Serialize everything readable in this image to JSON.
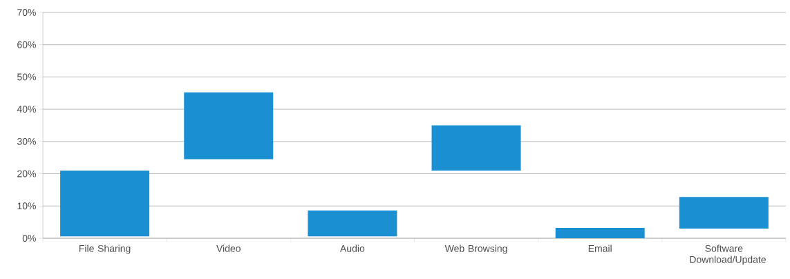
{
  "chart_data": {
    "type": "bar",
    "categories": [
      "File Sharing",
      "Video",
      "Audio",
      "Web Browsing",
      "Email",
      "Software Download/Update"
    ],
    "base": [
      0.6,
      24.5,
      0.6,
      21,
      0,
      3
    ],
    "values": [
      20.4,
      20.7,
      8,
      14,
      3.2,
      9.8
    ],
    "color": "#1a8fd2",
    "ylim": [
      0,
      70
    ],
    "yticks": [
      {
        "value": 0,
        "label": "0%"
      },
      {
        "value": 10,
        "label": "10%"
      },
      {
        "value": 20,
        "label": "20%"
      },
      {
        "value": 30,
        "label": "30%"
      },
      {
        "value": 40,
        "label": "40%"
      },
      {
        "value": 50,
        "label": "50%"
      },
      {
        "value": 60,
        "label": "60%"
      },
      {
        "value": 70,
        "label": "70%"
      }
    ],
    "grid": "y"
  }
}
